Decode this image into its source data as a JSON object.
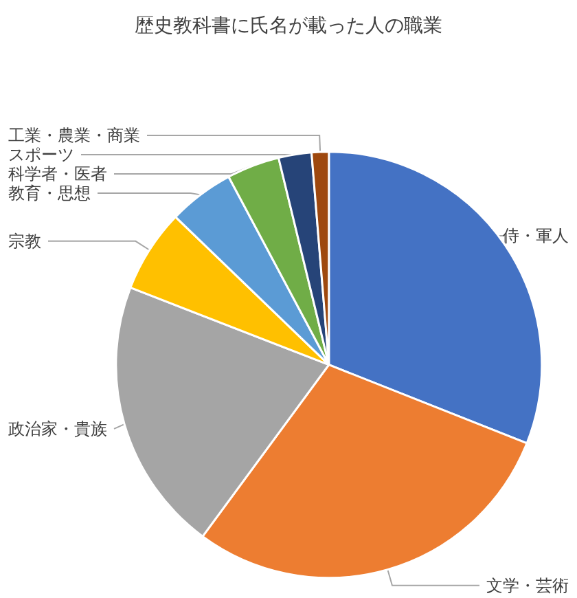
{
  "chart_data": {
    "type": "pie",
    "title": "歴史教科書に氏名が載った人の職業",
    "categories": [
      "侍・軍人",
      "文学・芸術",
      "政治家・貴族",
      "宗教",
      "教育・思想",
      "科学者・医者",
      "スポーツ",
      "工業・農業・商業"
    ],
    "values": [
      31,
      29.1,
      20.8,
      6.3,
      5,
      4,
      2.5,
      1.3
    ],
    "colors": [
      "#4472c4",
      "#ed7d31",
      "#a5a5a5",
      "#ffc000",
      "#5b9bd5",
      "#70ad47",
      "#264478",
      "#9e480e"
    ],
    "legend": false
  }
}
